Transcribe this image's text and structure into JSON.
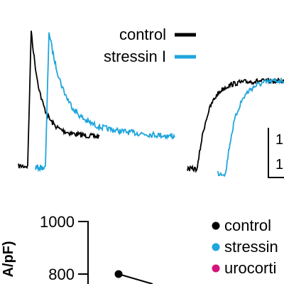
{
  "colors": {
    "control": "#000000",
    "stressin": "#1fa6dc",
    "urocortin": "#d6127c"
  },
  "chart_data": [
    {
      "type": "line",
      "title": "",
      "series": [
        {
          "name": "control",
          "color": "#000000"
        },
        {
          "name": "stressin I",
          "color": "#1fa6dc"
        }
      ],
      "legend": {
        "placement": "top-right"
      },
      "scale_bar_labels": [
        "1",
        "1"
      ]
    },
    {
      "type": "scatter",
      "ylabel": "A/pF)",
      "y_ticks": [
        {
          "value": 1000,
          "label": "1000"
        },
        {
          "value": 800,
          "label": "800"
        }
      ],
      "ylim": [
        700,
        1000
      ],
      "series": [
        {
          "name": "control",
          "color": "#000000",
          "values": [
            800
          ]
        },
        {
          "name": "stressin",
          "color": "#1fa6dc",
          "values": []
        },
        {
          "name": "urocorti",
          "color": "#d6127c",
          "values": []
        }
      ],
      "legend": {
        "placement": "right"
      }
    }
  ]
}
